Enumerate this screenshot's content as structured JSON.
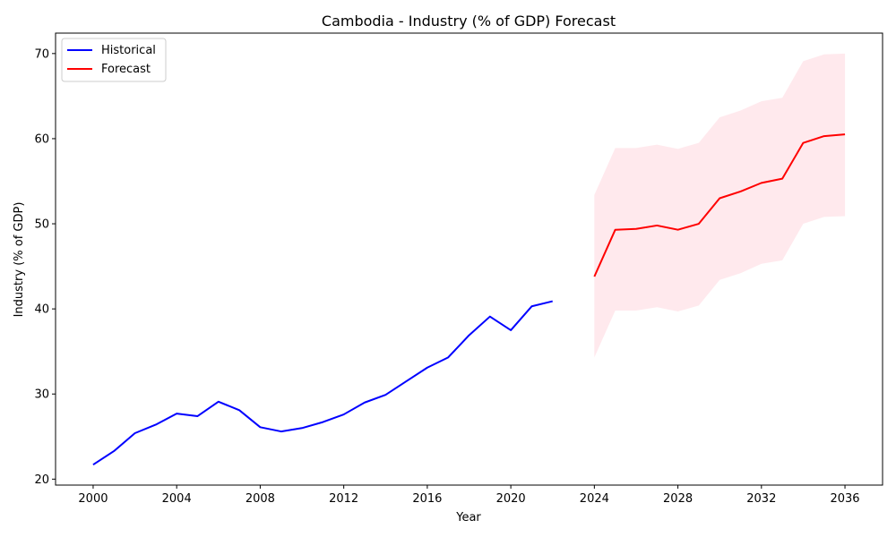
{
  "chart_data": {
    "type": "line",
    "title": "Cambodia - Industry (% of GDP) Forecast",
    "xlabel": "Year",
    "ylabel": "Industry (% of GDP)",
    "xlim": [
      1998.2,
      2037.8
    ],
    "ylim": [
      19.3,
      72.4
    ],
    "x_ticks": [
      2000,
      2004,
      2008,
      2012,
      2016,
      2020,
      2024,
      2028,
      2032,
      2036
    ],
    "y_ticks": [
      20,
      30,
      40,
      50,
      60,
      70
    ],
    "grid": false,
    "legend_position": "top-left",
    "series": [
      {
        "name": "Historical",
        "color": "#0000ff",
        "x": [
          2000,
          2001,
          2002,
          2003,
          2004,
          2005,
          2006,
          2007,
          2008,
          2009,
          2010,
          2011,
          2012,
          2013,
          2014,
          2015,
          2016,
          2017,
          2018,
          2019,
          2020,
          2021,
          2022
        ],
        "y": [
          21.7,
          23.3,
          25.4,
          26.4,
          27.7,
          27.4,
          29.1,
          28.1,
          26.1,
          25.6,
          26.0,
          26.7,
          27.6,
          29.0,
          29.9,
          31.5,
          33.1,
          34.3,
          36.9,
          39.1,
          37.5,
          40.3,
          40.9
        ]
      },
      {
        "name": "Forecast",
        "color": "#ff0000",
        "x": [
          2024,
          2025,
          2026,
          2027,
          2028,
          2029,
          2030,
          2031,
          2032,
          2033,
          2034,
          2035,
          2036
        ],
        "y": [
          43.8,
          49.3,
          49.4,
          49.8,
          49.3,
          50.0,
          53.0,
          53.8,
          54.8,
          55.3,
          59.5,
          60.3,
          60.5
        ],
        "lower": [
          34.3,
          39.8,
          39.8,
          40.2,
          39.7,
          40.4,
          43.4,
          44.2,
          45.3,
          45.7,
          50.0,
          50.8,
          50.9
        ],
        "upper": [
          53.4,
          58.9,
          58.9,
          59.3,
          58.8,
          59.5,
          62.5,
          63.3,
          64.4,
          64.8,
          69.1,
          69.9,
          70.0
        ]
      }
    ],
    "band_color": "#ffc0cb"
  }
}
